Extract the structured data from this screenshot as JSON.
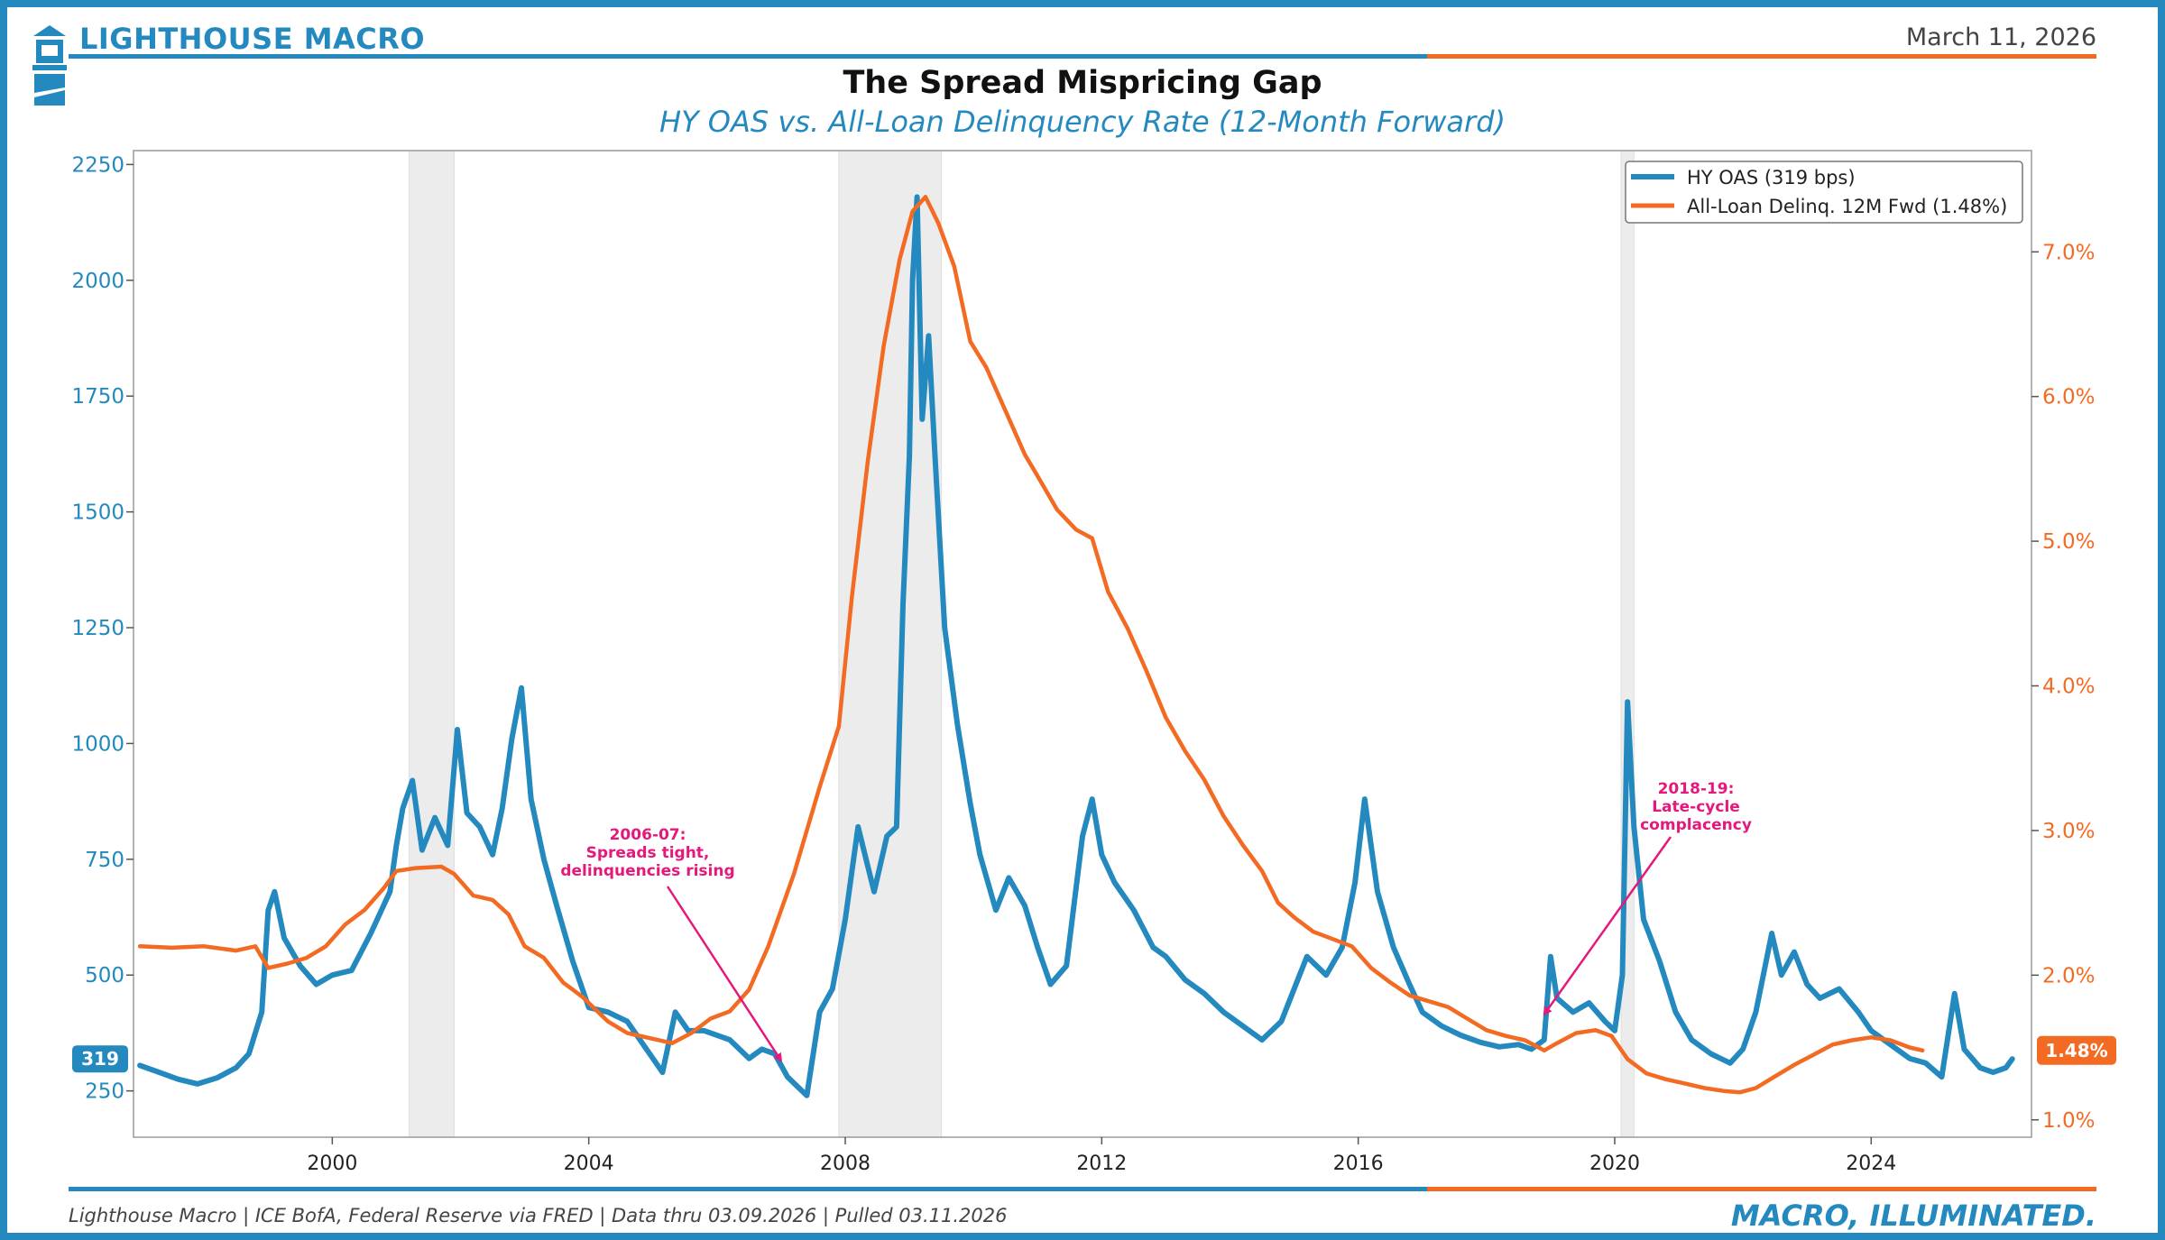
{
  "header": {
    "brand": "LIGHTHOUSE MACRO",
    "date": "March 11, 2026",
    "title": "The Spread Mispricing Gap",
    "subtitle": "HY OAS vs. All-Loan Delinquency Rate (12-Month Forward)"
  },
  "footer": {
    "source": "Lighthouse Macro | ICE BofA, Federal Reserve via FRED | Data thru 03.09.2026 | Pulled 03.11.2026",
    "tagline": "MACRO, ILLUMINATED."
  },
  "colors": {
    "brand_blue": "#2389be",
    "accent_orange": "#f36a22",
    "annotation_pink": "#e5197c",
    "recession_gray": "#ececec"
  },
  "chart_data": {
    "type": "line",
    "title": "The Spread Mispricing Gap",
    "subtitle": "HY OAS vs. All-Loan Delinquency Rate (12-Month Forward)",
    "x_range": [
      1996.9,
      2026.5
    ],
    "x_ticks": [
      2000,
      2004,
      2008,
      2012,
      2016,
      2020,
      2024
    ],
    "y_left": {
      "range": [
        150,
        2280
      ],
      "ticks": [
        250,
        500,
        750,
        1000,
        1250,
        1500,
        1750,
        2000,
        2250
      ]
    },
    "y_right": {
      "range": [
        0.88,
        7.7
      ],
      "ticks": [
        1.0,
        2.0,
        3.0,
        4.0,
        5.0,
        6.0,
        7.0
      ],
      "tick_suffix": "%"
    },
    "recessions": [
      [
        2001.2,
        2001.9
      ],
      [
        2007.9,
        2009.5
      ],
      [
        2020.1,
        2020.3
      ]
    ],
    "legend": {
      "position": "top-right",
      "entries": [
        "HY OAS (319 bps)",
        "All-Loan Delinq. 12M Fwd (1.48%)"
      ]
    },
    "series": [
      {
        "name": "HY OAS (319 bps)",
        "axis": "left",
        "color": "#2389be",
        "badge": "319",
        "points": [
          [
            1997.0,
            305
          ],
          [
            1997.3,
            290
          ],
          [
            1997.6,
            275
          ],
          [
            1997.9,
            265
          ],
          [
            1998.2,
            278
          ],
          [
            1998.5,
            300
          ],
          [
            1998.7,
            330
          ],
          [
            1998.9,
            420
          ],
          [
            1999.0,
            640
          ],
          [
            1999.1,
            680
          ],
          [
            1999.25,
            580
          ],
          [
            1999.5,
            520
          ],
          [
            1999.75,
            480
          ],
          [
            2000.0,
            500
          ],
          [
            2000.3,
            510
          ],
          [
            2000.6,
            590
          ],
          [
            2000.9,
            680
          ],
          [
            2001.0,
            780
          ],
          [
            2001.1,
            860
          ],
          [
            2001.25,
            920
          ],
          [
            2001.4,
            770
          ],
          [
            2001.6,
            840
          ],
          [
            2001.8,
            780
          ],
          [
            2001.95,
            1030
          ],
          [
            2002.1,
            850
          ],
          [
            2002.3,
            820
          ],
          [
            2002.5,
            760
          ],
          [
            2002.65,
            860
          ],
          [
            2002.8,
            1010
          ],
          [
            2002.95,
            1120
          ],
          [
            2003.1,
            880
          ],
          [
            2003.3,
            750
          ],
          [
            2003.5,
            650
          ],
          [
            2003.75,
            530
          ],
          [
            2004.0,
            430
          ],
          [
            2004.3,
            420
          ],
          [
            2004.6,
            400
          ],
          [
            2004.85,
            350
          ],
          [
            2005.0,
            320
          ],
          [
            2005.15,
            290
          ],
          [
            2005.35,
            420
          ],
          [
            2005.55,
            380
          ],
          [
            2005.8,
            380
          ],
          [
            2006.2,
            360
          ],
          [
            2006.5,
            320
          ],
          [
            2006.7,
            340
          ],
          [
            2006.9,
            330
          ],
          [
            2007.1,
            280
          ],
          [
            2007.4,
            240
          ],
          [
            2007.6,
            420
          ],
          [
            2007.8,
            470
          ],
          [
            2008.0,
            620
          ],
          [
            2008.2,
            820
          ],
          [
            2008.45,
            680
          ],
          [
            2008.65,
            800
          ],
          [
            2008.8,
            820
          ],
          [
            2008.9,
            1300
          ],
          [
            2009.0,
            1620
          ],
          [
            2009.05,
            2000
          ],
          [
            2009.12,
            2180
          ],
          [
            2009.2,
            1700
          ],
          [
            2009.3,
            1880
          ],
          [
            2009.4,
            1620
          ],
          [
            2009.55,
            1250
          ],
          [
            2009.75,
            1040
          ],
          [
            2009.95,
            870
          ],
          [
            2010.1,
            760
          ],
          [
            2010.35,
            640
          ],
          [
            2010.55,
            710
          ],
          [
            2010.8,
            650
          ],
          [
            2011.0,
            560
          ],
          [
            2011.2,
            480
          ],
          [
            2011.45,
            520
          ],
          [
            2011.7,
            800
          ],
          [
            2011.85,
            880
          ],
          [
            2012.0,
            760
          ],
          [
            2012.2,
            700
          ],
          [
            2012.5,
            640
          ],
          [
            2012.8,
            560
          ],
          [
            2013.0,
            540
          ],
          [
            2013.3,
            490
          ],
          [
            2013.6,
            460
          ],
          [
            2013.9,
            420
          ],
          [
            2014.2,
            390
          ],
          [
            2014.5,
            360
          ],
          [
            2014.8,
            400
          ],
          [
            2015.0,
            470
          ],
          [
            2015.2,
            540
          ],
          [
            2015.5,
            500
          ],
          [
            2015.75,
            560
          ],
          [
            2015.95,
            700
          ],
          [
            2016.1,
            880
          ],
          [
            2016.3,
            680
          ],
          [
            2016.55,
            560
          ],
          [
            2016.8,
            480
          ],
          [
            2017.0,
            420
          ],
          [
            2017.3,
            390
          ],
          [
            2017.6,
            370
          ],
          [
            2017.9,
            355
          ],
          [
            2018.2,
            345
          ],
          [
            2018.5,
            350
          ],
          [
            2018.7,
            340
          ],
          [
            2018.9,
            360
          ],
          [
            2019.0,
            540
          ],
          [
            2019.1,
            450
          ],
          [
            2019.35,
            420
          ],
          [
            2019.6,
            440
          ],
          [
            2019.85,
            400
          ],
          [
            2020.0,
            380
          ],
          [
            2020.12,
            500
          ],
          [
            2020.2,
            1090
          ],
          [
            2020.3,
            820
          ],
          [
            2020.45,
            620
          ],
          [
            2020.7,
            530
          ],
          [
            2020.95,
            420
          ],
          [
            2021.2,
            360
          ],
          [
            2021.5,
            330
          ],
          [
            2021.8,
            310
          ],
          [
            2022.0,
            340
          ],
          [
            2022.2,
            420
          ],
          [
            2022.45,
            590
          ],
          [
            2022.6,
            500
          ],
          [
            2022.8,
            550
          ],
          [
            2023.0,
            480
          ],
          [
            2023.2,
            450
          ],
          [
            2023.5,
            470
          ],
          [
            2023.8,
            420
          ],
          [
            2024.0,
            380
          ],
          [
            2024.3,
            350
          ],
          [
            2024.6,
            320
          ],
          [
            2024.85,
            310
          ],
          [
            2025.1,
            280
          ],
          [
            2025.3,
            460
          ],
          [
            2025.45,
            340
          ],
          [
            2025.7,
            300
          ],
          [
            2025.9,
            290
          ],
          [
            2026.1,
            300
          ],
          [
            2026.2,
            319
          ]
        ]
      },
      {
        "name": "All-Loan Delinq. 12M Fwd (1.48%)",
        "axis": "right",
        "color": "#f36a22",
        "badge": "1.48%",
        "points": [
          [
            1997.0,
            2.2
          ],
          [
            1997.5,
            2.19
          ],
          [
            1998.0,
            2.2
          ],
          [
            1998.5,
            2.17
          ],
          [
            1998.8,
            2.2
          ],
          [
            1999.0,
            2.05
          ],
          [
            1999.3,
            2.08
          ],
          [
            1999.6,
            2.12
          ],
          [
            1999.9,
            2.2
          ],
          [
            2000.2,
            2.35
          ],
          [
            2000.5,
            2.45
          ],
          [
            2000.8,
            2.6
          ],
          [
            2001.0,
            2.72
          ],
          [
            2001.3,
            2.74
          ],
          [
            2001.7,
            2.75
          ],
          [
            2001.9,
            2.7
          ],
          [
            2002.2,
            2.55
          ],
          [
            2002.5,
            2.52
          ],
          [
            2002.75,
            2.42
          ],
          [
            2003.0,
            2.2
          ],
          [
            2003.3,
            2.12
          ],
          [
            2003.6,
            1.95
          ],
          [
            2003.9,
            1.85
          ],
          [
            2004.3,
            1.68
          ],
          [
            2004.6,
            1.6
          ],
          [
            2005.0,
            1.56
          ],
          [
            2005.3,
            1.53
          ],
          [
            2005.6,
            1.6
          ],
          [
            2005.9,
            1.7
          ],
          [
            2006.2,
            1.75
          ],
          [
            2006.5,
            1.9
          ],
          [
            2006.8,
            2.2
          ],
          [
            2007.2,
            2.7
          ],
          [
            2007.6,
            3.3
          ],
          [
            2007.9,
            3.72
          ],
          [
            2008.1,
            4.6
          ],
          [
            2008.35,
            5.55
          ],
          [
            2008.6,
            6.35
          ],
          [
            2008.85,
            6.95
          ],
          [
            2009.05,
            7.28
          ],
          [
            2009.25,
            7.38
          ],
          [
            2009.45,
            7.2
          ],
          [
            2009.7,
            6.9
          ],
          [
            2009.95,
            6.38
          ],
          [
            2010.2,
            6.2
          ],
          [
            2010.5,
            5.9
          ],
          [
            2010.8,
            5.6
          ],
          [
            2011.0,
            5.45
          ],
          [
            2011.3,
            5.22
          ],
          [
            2011.6,
            5.08
          ],
          [
            2011.85,
            5.02
          ],
          [
            2012.1,
            4.65
          ],
          [
            2012.4,
            4.4
          ],
          [
            2012.7,
            4.1
          ],
          [
            2013.0,
            3.78
          ],
          [
            2013.3,
            3.55
          ],
          [
            2013.6,
            3.35
          ],
          [
            2013.9,
            3.1
          ],
          [
            2014.2,
            2.9
          ],
          [
            2014.5,
            2.72
          ],
          [
            2014.75,
            2.5
          ],
          [
            2015.0,
            2.4
          ],
          [
            2015.3,
            2.3
          ],
          [
            2015.6,
            2.25
          ],
          [
            2015.9,
            2.2
          ],
          [
            2016.2,
            2.05
          ],
          [
            2016.5,
            1.95
          ],
          [
            2016.8,
            1.86
          ],
          [
            2017.1,
            1.82
          ],
          [
            2017.4,
            1.78
          ],
          [
            2017.7,
            1.7
          ],
          [
            2018.0,
            1.62
          ],
          [
            2018.3,
            1.58
          ],
          [
            2018.6,
            1.55
          ],
          [
            2018.9,
            1.48
          ],
          [
            2019.1,
            1.53
          ],
          [
            2019.4,
            1.6
          ],
          [
            2019.7,
            1.62
          ],
          [
            2019.95,
            1.58
          ],
          [
            2020.2,
            1.42
          ],
          [
            2020.5,
            1.32
          ],
          [
            2020.8,
            1.28
          ],
          [
            2021.1,
            1.25
          ],
          [
            2021.4,
            1.22
          ],
          [
            2021.7,
            1.2
          ],
          [
            2021.95,
            1.19
          ],
          [
            2022.2,
            1.22
          ],
          [
            2022.5,
            1.3
          ],
          [
            2022.8,
            1.38
          ],
          [
            2023.1,
            1.45
          ],
          [
            2023.4,
            1.52
          ],
          [
            2023.7,
            1.55
          ],
          [
            2024.0,
            1.57
          ],
          [
            2024.3,
            1.55
          ],
          [
            2024.6,
            1.5
          ],
          [
            2024.8,
            1.48
          ]
        ]
      }
    ],
    "annotations": [
      {
        "lines": [
          "2006-07:",
          "Spreads tight,",
          "delinquencies rising"
        ],
        "target": [
          2007.0,
          315
        ],
        "axis": "left"
      },
      {
        "lines": [
          "2018-19:",
          "Late-cycle",
          "complacency"
        ],
        "target": [
          2018.9,
          415
        ],
        "axis": "left"
      }
    ]
  }
}
